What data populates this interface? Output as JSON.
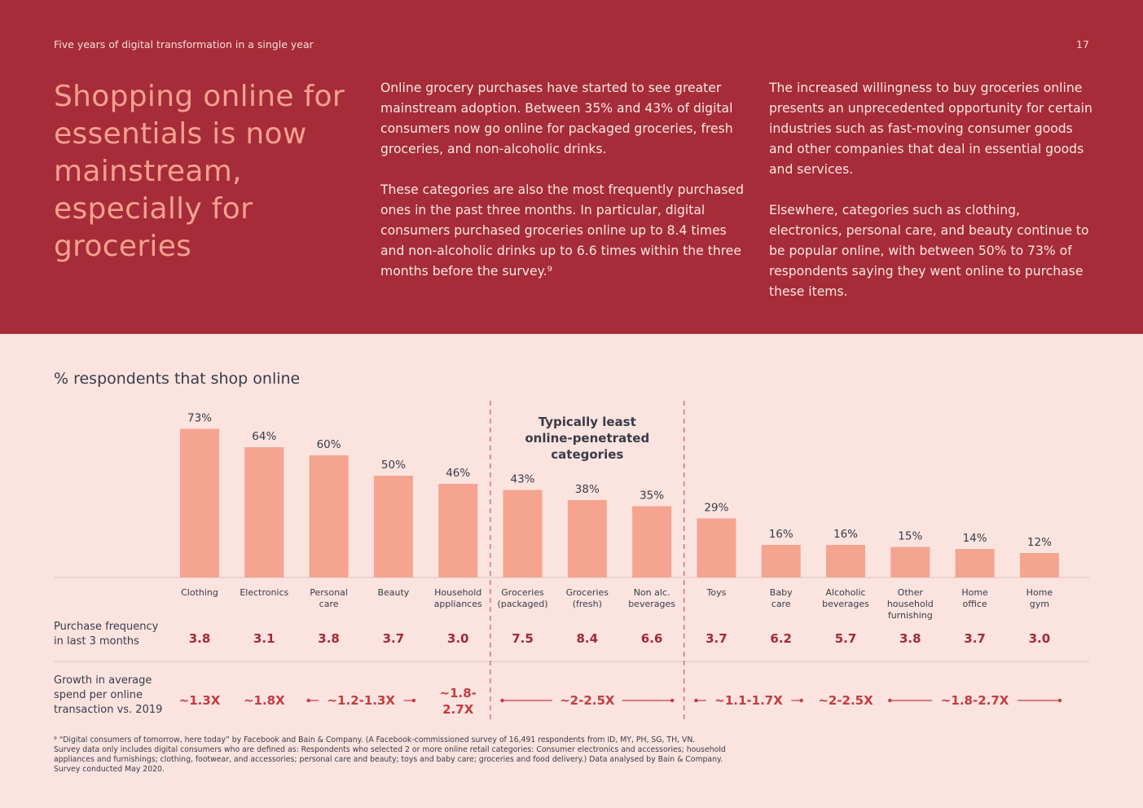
{
  "header": {
    "title": "Five years of digital transformation in a single year",
    "page_number": "17"
  },
  "headline": "Shopping online for essentials is now mainstream, especially for groceries",
  "columns": {
    "col1_p1": "Online grocery purchases have started to see greater mainstream adoption. Between 35% and 43% of digital consumers now go online for packaged groceries, fresh groceries, and non-alcoholic drinks.",
    "col1_p2": "These categories are also the most frequently purchased ones in the past three months. In particular, digital consumers purchased groceries online up to 8.4 times and non-alcoholic drinks up to 6.6 times within the three months before the survey.⁹",
    "col2_p1": "The increased willingness to buy groceries online presents an unprecedented opportunity for certain industries such as fast-moving consumer goods and other companies that deal in essential goods and services.",
    "col2_p2": "Elsewhere, categories such as clothing, electronics, personal care, and beauty continue to be popular online, with between 50% to 73% of respondents saying they went online to purchase these items."
  },
  "chart_title": "% respondents that shop online",
  "chart_data": {
    "type": "bar",
    "title": "% respondents that shop online",
    "categories": [
      [
        "Clothing"
      ],
      [
        "Electronics"
      ],
      [
        "Personal",
        "care"
      ],
      [
        "Beauty"
      ],
      [
        "Household",
        "appliances"
      ],
      [
        "Groceries",
        "(packaged)"
      ],
      [
        "Groceries",
        "(fresh)"
      ],
      [
        "Non alc.",
        "beverages"
      ],
      [
        "Toys"
      ],
      [
        "Baby",
        "care"
      ],
      [
        "Alcoholic",
        "beverages"
      ],
      [
        "Other",
        "household",
        "furnishing"
      ],
      [
        "Home",
        "office"
      ],
      [
        "Home",
        "gym"
      ]
    ],
    "values": [
      73,
      64,
      60,
      50,
      46,
      43,
      38,
      35,
      29,
      16,
      16,
      15,
      14,
      12
    ],
    "value_labels": [
      "73%",
      "64%",
      "60%",
      "50%",
      "46%",
      "43%",
      "38%",
      "35%",
      "29%",
      "16%",
      "16%",
      "15%",
      "14%",
      "12%"
    ],
    "ylim": [
      0,
      80
    ],
    "bar_color": "#f4a48f",
    "highlight_range": [
      5,
      7
    ],
    "highlight_label": [
      "Typically least",
      "online-penetrated",
      "categories"
    ],
    "rows": [
      {
        "label": [
          "Purchase frequency",
          "in last 3 months"
        ],
        "values": [
          "3.8",
          "3.1",
          "3.8",
          "3.7",
          "3.0",
          "7.5",
          "8.4",
          "6.6",
          "3.7",
          "6.2",
          "5.7",
          "3.8",
          "3.7",
          "3.0"
        ]
      },
      {
        "label": [
          "Growth in average",
          "spend per online",
          "transaction vs. 2019"
        ],
        "groups": [
          {
            "start": 0,
            "end": 0,
            "text": [
              "~1.3X"
            ],
            "arrows": false
          },
          {
            "start": 1,
            "end": 1,
            "text": [
              "~1.8X"
            ],
            "arrows": false
          },
          {
            "start": 2,
            "end": 3,
            "text": [
              "~1.2-1.3X"
            ],
            "arrows": true
          },
          {
            "start": 4,
            "end": 4,
            "text": [
              "~1.8-",
              "2.7X"
            ],
            "arrows": false
          },
          {
            "start": 5,
            "end": 7,
            "text": [
              "~2-2.5X"
            ],
            "arrows": true
          },
          {
            "start": 8,
            "end": 9,
            "text": [
              "~1.1-1.7X"
            ],
            "arrows": true
          },
          {
            "start": 10,
            "end": 10,
            "text": [
              "~2-2.5X"
            ],
            "arrows": false
          },
          {
            "start": 11,
            "end": 13,
            "text": [
              "~1.8-2.7X"
            ],
            "arrows": true
          }
        ]
      }
    ]
  },
  "footnote": [
    "⁹ “Digital consumers of tomorrow, here today” by Facebook and Bain & Company. (A Facebook-commissioned survey of 16,491 respondents from ID, MY, PH, SG, TH, VN.",
    "Survey data only includes digital consumers who are defined as: Respondents who selected 2 or more online retail categories: Consumer electronics and accessories; household",
    "appliances and furnishings; clothing, footwear, and accessories; personal care and beauty; toys and baby care; groceries and food delivery.) Data analysed by Bain & Company.",
    "Survey conducted May 2020."
  ]
}
